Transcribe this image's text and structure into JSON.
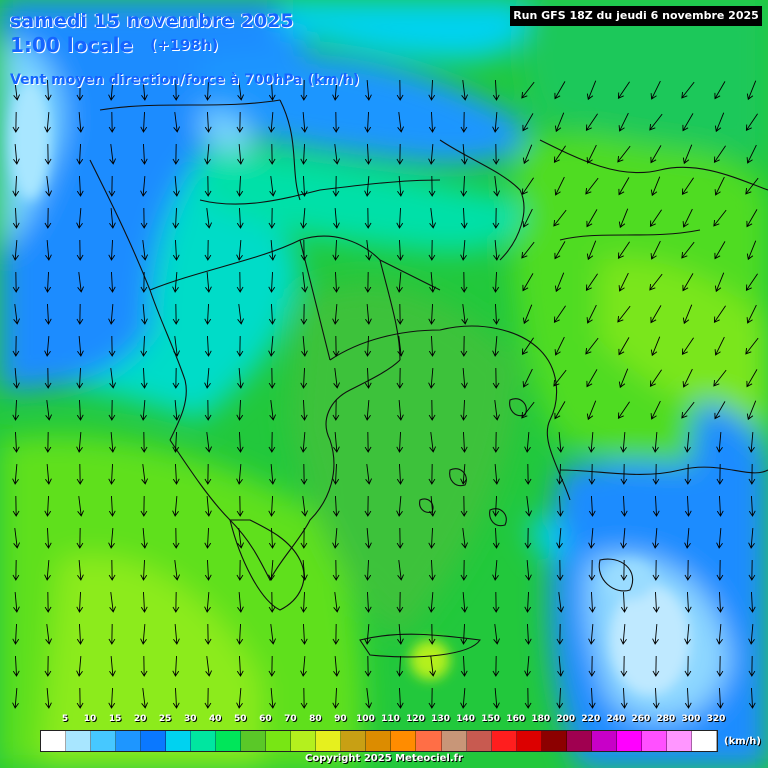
{
  "header": {
    "date_line": "samedi 15 novembre 2025",
    "time_line": "1:00 locale",
    "lead_time": "(+198h)",
    "parameter": "Vent moyen direction/force à 700hPa (km/h)",
    "run_info": "Run GFS 18Z du jeudi 6 novembre 2025"
  },
  "legend": {
    "ticks": [
      "5",
      "10",
      "15",
      "20",
      "25",
      "30",
      "40",
      "50",
      "60",
      "70",
      "80",
      "90",
      "100",
      "110",
      "120",
      "130",
      "140",
      "150",
      "160",
      "180",
      "200",
      "220",
      "240",
      "260",
      "280",
      "300",
      "320"
    ],
    "colors": [
      "#ffffff",
      "#a8e6ff",
      "#46c8ff",
      "#1e96ff",
      "#0a78ff",
      "#00d2f0",
      "#00e6a0",
      "#00e65a",
      "#5ac828",
      "#78e614",
      "#b4f01e",
      "#e6f01e",
      "#c8a014",
      "#dc8c00",
      "#ff8c00",
      "#ff6e46",
      "#c89678",
      "#c85a50",
      "#ff1e1e",
      "#dc0000",
      "#8c0000",
      "#a00050",
      "#c800c8",
      "#ff00ff",
      "#ff50ff",
      "#ff96ff",
      "#ffffff"
    ],
    "unit": "(km/h)"
  },
  "footer": {
    "copyright": "Copyright 2025 Meteociel.fr"
  },
  "map": {
    "region": "Greece / Balkans / Aegean / Western Turkey",
    "wind_field_colors": {
      "weak": "#1e96ff",
      "light": "#00d2f0",
      "moderate": "#00e65a",
      "moderate_strong": "#5ac828",
      "strong": "#78e614",
      "calm_patch": "#a8e6ff"
    },
    "arrow_direction": "north-to-south flow over most of the domain"
  }
}
